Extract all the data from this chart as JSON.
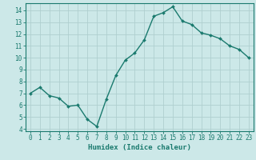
{
  "x": [
    0,
    1,
    2,
    3,
    4,
    5,
    6,
    7,
    8,
    9,
    10,
    11,
    12,
    13,
    14,
    15,
    16,
    17,
    18,
    19,
    20,
    21,
    22,
    23
  ],
  "y": [
    7.0,
    7.5,
    6.8,
    6.6,
    5.9,
    6.0,
    4.8,
    4.2,
    6.5,
    8.5,
    9.8,
    10.4,
    11.5,
    13.5,
    13.8,
    14.3,
    13.1,
    12.8,
    12.1,
    11.9,
    11.6,
    11.0,
    10.7,
    10.0
  ],
  "line_color": "#1a7a6e",
  "marker": "D",
  "marker_size": 2.0,
  "linewidth": 1.0,
  "background_color": "#cce8e8",
  "grid_color": "#b0cfcf",
  "xlabel": "Humidex (Indice chaleur)",
  "ylim": [
    3.8,
    14.6
  ],
  "xlim": [
    -0.5,
    23.5
  ],
  "yticks": [
    4,
    5,
    6,
    7,
    8,
    9,
    10,
    11,
    12,
    13,
    14
  ],
  "xticks": [
    0,
    1,
    2,
    3,
    4,
    5,
    6,
    7,
    8,
    9,
    10,
    11,
    12,
    13,
    14,
    15,
    16,
    17,
    18,
    19,
    20,
    21,
    22,
    23
  ],
  "tick_fontsize": 5.5,
  "xlabel_fontsize": 6.5,
  "tick_color": "#1a7a6e",
  "axis_color": "#1a7a6e"
}
